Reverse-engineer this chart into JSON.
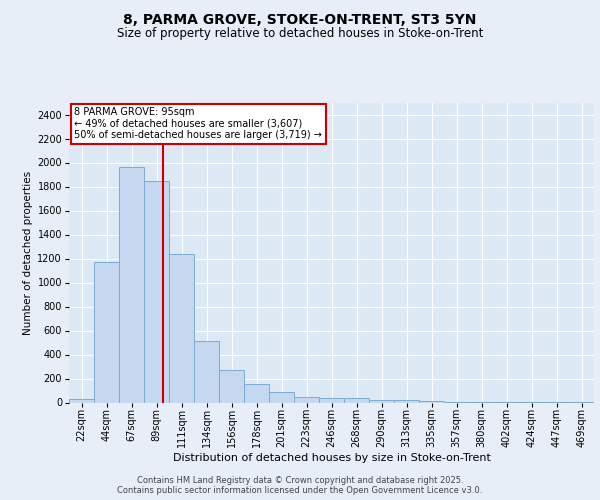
{
  "title_line1": "8, PARMA GROVE, STOKE-ON-TRENT, ST3 5YN",
  "title_line2": "Size of property relative to detached houses in Stoke-on-Trent",
  "xlabel": "Distribution of detached houses by size in Stoke-on-Trent",
  "ylabel": "Number of detached properties",
  "bar_labels": [
    "22sqm",
    "44sqm",
    "67sqm",
    "89sqm",
    "111sqm",
    "134sqm",
    "156sqm",
    "178sqm",
    "201sqm",
    "223sqm",
    "246sqm",
    "268sqm",
    "290sqm",
    "313sqm",
    "335sqm",
    "357sqm",
    "380sqm",
    "402sqm",
    "424sqm",
    "447sqm",
    "469sqm"
  ],
  "bar_values": [
    30,
    1170,
    1960,
    1850,
    1240,
    515,
    275,
    155,
    90,
    50,
    40,
    35,
    25,
    20,
    10,
    5,
    5,
    3,
    3,
    2,
    2
  ],
  "bar_color": "#c5d8f0",
  "bar_edgecolor": "#7aadd4",
  "annotation_text": "8 PARMA GROVE: 95sqm\n← 49% of detached houses are smaller (3,607)\n50% of semi-detached houses are larger (3,719) →",
  "annotation_box_color": "#ffffff",
  "annotation_box_edgecolor": "#cc0000",
  "vline_color": "#cc0000",
  "ylim": [
    0,
    2500
  ],
  "yticks": [
    0,
    200,
    400,
    600,
    800,
    1000,
    1200,
    1400,
    1600,
    1800,
    2000,
    2200,
    2400
  ],
  "bg_color": "#dde8f5",
  "grid_color": "#ffffff",
  "fig_bg_color": "#e8eef8",
  "footer_text": "Contains HM Land Registry data © Crown copyright and database right 2025.\nContains public sector information licensed under the Open Government Licence v3.0.",
  "title_fontsize": 10,
  "subtitle_fontsize": 8.5,
  "xlabel_fontsize": 8,
  "ylabel_fontsize": 7.5,
  "tick_fontsize": 7,
  "annot_fontsize": 7,
  "footer_fontsize": 6
}
